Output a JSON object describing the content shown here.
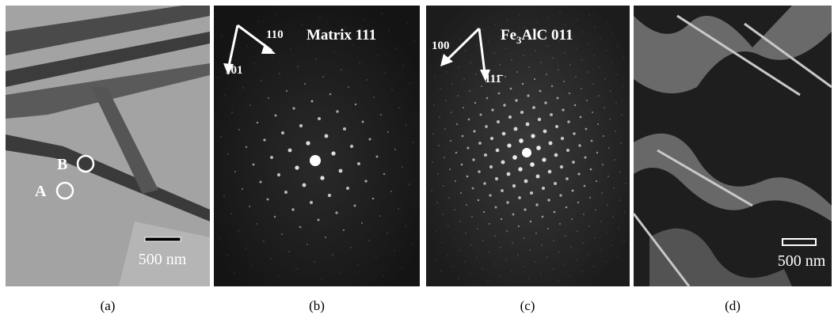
{
  "panels": [
    {
      "label": "(a)",
      "annotations": [
        "B",
        "A"
      ],
      "scale_bar": "500 nm"
    },
    {
      "label": "(b)",
      "title": "Matrix 111",
      "directions": [
        "110",
        "101"
      ]
    },
    {
      "label": "(c)",
      "title_parts": [
        "Fe",
        "3",
        "AlC 011"
      ],
      "directions": [
        "100",
        "111̄"
      ]
    },
    {
      "label": "(d)",
      "scale_bar": "500 nm"
    }
  ]
}
